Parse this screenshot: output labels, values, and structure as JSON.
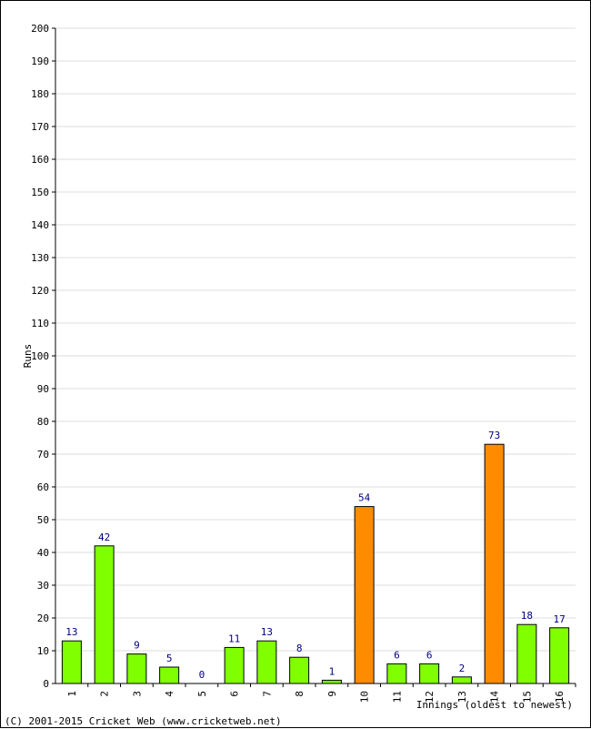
{
  "chart_data": {
    "type": "bar",
    "title": "",
    "ylabel": "Runs",
    "xlabel": "Innings (oldest to newest)",
    "ylim": [
      0,
      200
    ],
    "ytick_step": 10,
    "grid": true,
    "categories": [
      "1",
      "2",
      "3",
      "4",
      "5",
      "6",
      "7",
      "8",
      "9",
      "10",
      "11",
      "12",
      "13",
      "14",
      "15",
      "16"
    ],
    "values": [
      13,
      42,
      9,
      5,
      0,
      11,
      13,
      8,
      1,
      54,
      6,
      6,
      2,
      73,
      18,
      17
    ],
    "highlight_threshold": 50,
    "colors": {
      "normal_bar": "#80ff00",
      "highlight_bar": "#ff8c00",
      "bar_outline": "#000000",
      "data_label": "#000080",
      "grid": "#dddddd"
    }
  },
  "footer": {
    "copyright": "(C) 2001-2015 Cricket Web (www.cricketweb.net)"
  }
}
